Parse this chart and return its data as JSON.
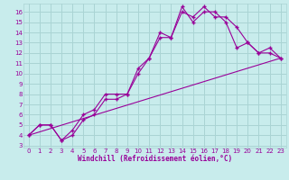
{
  "xlabel": "Windchill (Refroidissement éolien,°C)",
  "bg_color": "#c8ecec",
  "grid_color": "#aad4d4",
  "line_color": "#990099",
  "xlim": [
    -0.5,
    23.5
  ],
  "ylim": [
    2.8,
    16.8
  ],
  "xticks": [
    0,
    1,
    2,
    3,
    4,
    5,
    6,
    7,
    8,
    9,
    10,
    11,
    12,
    13,
    14,
    15,
    16,
    17,
    18,
    19,
    20,
    21,
    22,
    23
  ],
  "yticks": [
    3,
    4,
    5,
    6,
    7,
    8,
    9,
    10,
    11,
    12,
    13,
    14,
    15,
    16
  ],
  "curve1_x": [
    0,
    1,
    2,
    3,
    4,
    5,
    6,
    7,
    8,
    9,
    10,
    11,
    12,
    13,
    14,
    15,
    16,
    17,
    18,
    19,
    20,
    21,
    22,
    23
  ],
  "curve1_y": [
    4,
    5,
    5,
    3.5,
    4,
    5.5,
    6,
    7.5,
    7.5,
    8,
    10.5,
    11.5,
    14,
    13.5,
    16,
    15.5,
    16.5,
    15.5,
    15.5,
    14.5,
    13,
    12,
    12,
    11.5
  ],
  "curve2_x": [
    0,
    1,
    2,
    3,
    4,
    5,
    6,
    7,
    8,
    9,
    10,
    11,
    12,
    13,
    14,
    15,
    16,
    17,
    18,
    19,
    20,
    21,
    22,
    23
  ],
  "curve2_y": [
    4,
    5,
    5,
    3.5,
    4.5,
    6,
    6.5,
    8,
    8,
    8,
    10,
    11.5,
    13.5,
    13.5,
    16.5,
    15,
    16,
    16,
    15,
    12.5,
    13,
    12,
    12.5,
    11.5
  ],
  "curve3_x": [
    0,
    23
  ],
  "curve3_y": [
    4,
    11.5
  ]
}
